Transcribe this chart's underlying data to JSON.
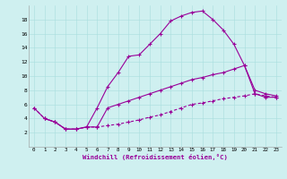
{
  "xlabel": "Windchill (Refroidissement éolien,°C)",
  "bg_color": "#cff0f0",
  "line_color": "#990099",
  "curve1_x": [
    1,
    2,
    3,
    4,
    5,
    6,
    7,
    8,
    9,
    10,
    11,
    12,
    13,
    14,
    15,
    16,
    17,
    18,
    19,
    20,
    21,
    22,
    23
  ],
  "curve1_y": [
    4.0,
    3.5,
    2.5,
    2.5,
    2.8,
    5.5,
    8.5,
    10.5,
    12.8,
    13.0,
    14.5,
    16.0,
    17.8,
    18.5,
    19.0,
    19.2,
    18.0,
    16.5,
    14.5,
    11.5,
    7.5,
    7.0,
    7.0
  ],
  "curve2_x": [
    0,
    1,
    2,
    3,
    4,
    5,
    6,
    7,
    8,
    9,
    10,
    11,
    12,
    13,
    14,
    15,
    16,
    17,
    18,
    19,
    20,
    21,
    22,
    23
  ],
  "curve2_y": [
    5.5,
    4.0,
    3.5,
    2.5,
    2.5,
    2.8,
    2.8,
    5.5,
    6.0,
    6.5,
    7.0,
    7.5,
    8.0,
    8.5,
    9.0,
    9.5,
    9.8,
    10.2,
    10.5,
    11.0,
    11.5,
    8.0,
    7.5,
    7.2
  ],
  "curve3_x": [
    0,
    1,
    2,
    3,
    4,
    5,
    6,
    7,
    8,
    9,
    10,
    11,
    12,
    13,
    14,
    15,
    16,
    17,
    18,
    19,
    20,
    21,
    22,
    23
  ],
  "curve3_y": [
    5.5,
    4.0,
    3.5,
    2.5,
    2.5,
    2.8,
    2.8,
    3.0,
    3.2,
    3.5,
    3.8,
    4.2,
    4.5,
    5.0,
    5.5,
    6.0,
    6.2,
    6.5,
    6.8,
    7.0,
    7.2,
    7.5,
    7.2,
    7.0
  ],
  "xlim": [
    -0.5,
    23.5
  ],
  "ylim": [
    0,
    20
  ],
  "xticks": [
    0,
    1,
    2,
    3,
    4,
    5,
    6,
    7,
    8,
    9,
    10,
    11,
    12,
    13,
    14,
    15,
    16,
    17,
    18,
    19,
    20,
    21,
    22,
    23
  ],
  "yticks": [
    2,
    4,
    6,
    8,
    10,
    12,
    14,
    16,
    18
  ]
}
